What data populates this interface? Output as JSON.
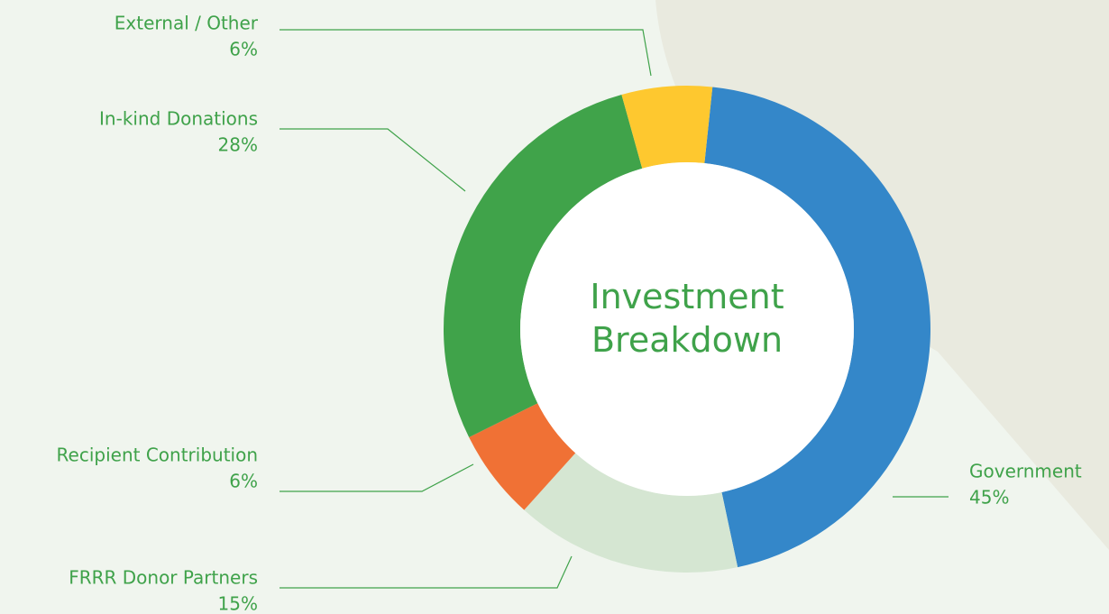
{
  "chart_data": {
    "type": "donut",
    "title": "Investment Breakdown",
    "categories": [
      "Government",
      "FRRR Donor Partners",
      "Recipient Contribution",
      "In-kind Donations",
      "External / Other"
    ],
    "values": [
      45,
      15,
      6,
      28,
      6
    ],
    "value_labels": [
      "45%",
      "15%",
      "6%",
      "28%",
      "6%"
    ],
    "colors": [
      "#3487c9",
      "#d5e6d2",
      "#f07135",
      "#40a34a",
      "#fec82f"
    ]
  }
}
